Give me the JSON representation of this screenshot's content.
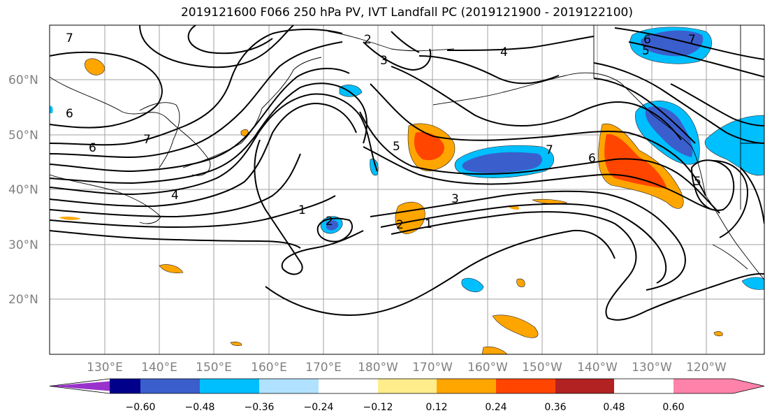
{
  "title": "2019121600 F066 250 hPa PV, IVT Landfall PC (2019121900 - 2019122100)",
  "lon_labels": [
    "130°E",
    "140°E",
    "150°E",
    "160°E",
    "170°E",
    "180°W",
    "170°W",
    "160°W",
    "150°W",
    "140°W",
    "130°W",
    "120°W"
  ],
  "lat_labels": [
    "60°N",
    "50°N",
    "40°N",
    "30°N",
    "20°N"
  ],
  "colorbar": {
    "colors": [
      "#9932cc",
      "#00008b",
      "#3a5fcd",
      "#00bfff",
      "#b0e2ff",
      "#ffffff",
      "#ffec8b",
      "#ffa500",
      "#ff4500",
      "#b22222",
      "#ff82ab"
    ],
    "tick_labels": [
      "−0.60",
      "−0.48",
      "−0.36",
      "−0.24",
      "−0.12",
      "0.12",
      "0.24",
      "0.36",
      "0.48",
      "0.60"
    ]
  },
  "pv_contour_labels": [
    "7",
    "6",
    "7",
    "4",
    "1",
    "2",
    "3",
    "2",
    "1",
    "3",
    "5",
    "4",
    "2",
    "7",
    "6",
    "6",
    "5",
    "7",
    "5",
    "6"
  ]
}
